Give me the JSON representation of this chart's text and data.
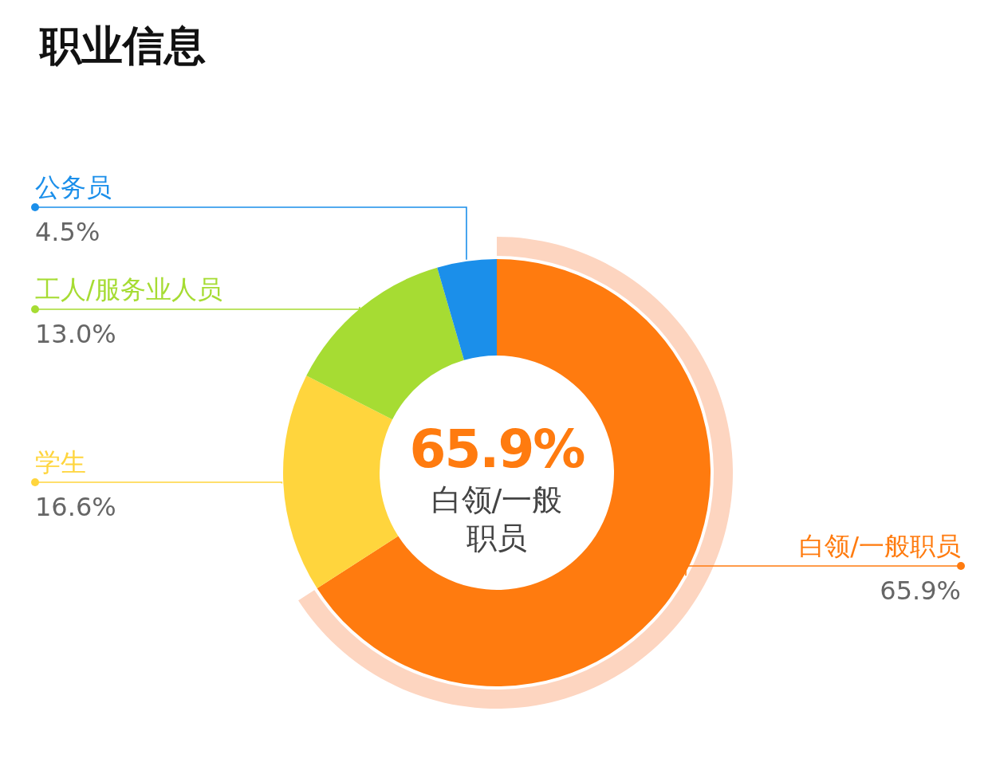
{
  "chart_data": {
    "type": "donut",
    "title": "职业信息",
    "categories": [
      "白领/一般职员",
      "学生",
      "工人/服务业人员",
      "公务员"
    ],
    "values": [
      65.9,
      16.6,
      13.0,
      4.5
    ],
    "colors": [
      "#ff7b0f",
      "#ffd53d",
      "#a6dc33",
      "#1b8fea"
    ],
    "value_labels": [
      "65.9%",
      "16.6%",
      "13.0%",
      "4.5%"
    ],
    "annotations": [
      "65.9%",
      "白领/一般职员"
    ]
  }
}
